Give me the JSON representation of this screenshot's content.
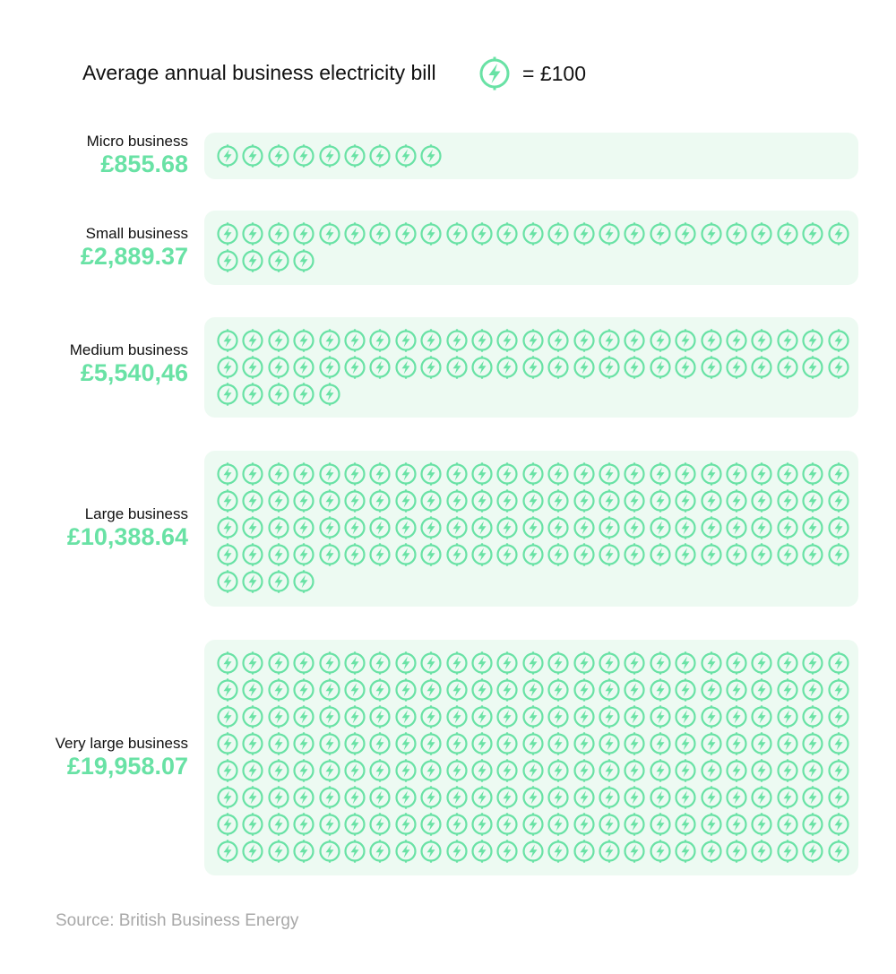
{
  "title": "Average annual business electricity bill",
  "legend": {
    "icon": "lightning-bolt-icon",
    "text": "= £100"
  },
  "source": "Source: British Business Energy",
  "colors": {
    "accent": "#69e2a5",
    "panel": "#edfaf2",
    "text": "#111111",
    "muted": "#a8a8a8"
  },
  "chart_data": {
    "type": "pictogram",
    "unit_value": 100,
    "unit_label": "= £100",
    "icons_per_row": 25,
    "categories": [
      "Micro business",
      "Small business",
      "Medium business",
      "Large business",
      "Very large business"
    ],
    "values": [
      855.68,
      2889.37,
      5540.46,
      10388.64,
      19958.07
    ],
    "value_labels": [
      "£855.68",
      "£2,889.37",
      "£5,540,46",
      "£10,388.64",
      "£19,958.07"
    ],
    "icon_counts": [
      9,
      29,
      55,
      104,
      200
    ]
  }
}
